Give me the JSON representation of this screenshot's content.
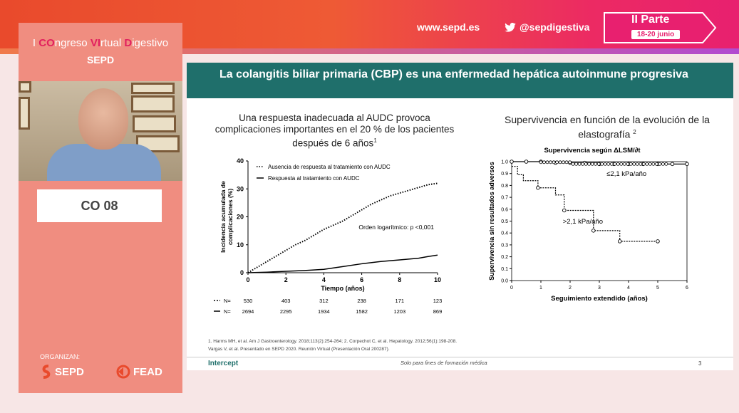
{
  "header": {
    "website": "www.sepd.es",
    "twitter": "@sepdigestiva",
    "parte_title": "II Parte",
    "parte_dates": "18-20 junio"
  },
  "congress": {
    "title_parts": [
      "I ",
      "CO",
      "ngreso ",
      "VI",
      "rtual ",
      "D",
      "igestivo"
    ],
    "org": "SEPD"
  },
  "session_code": "CO 08",
  "organizers": {
    "label": "ORGANIZAN:",
    "logo1": "SEPD",
    "logo2": "FEAD"
  },
  "slide": {
    "title": "La colangitis biliar primaria (CBP) es una enfermedad hepática autoinmune progresiva",
    "left_title": "Una respuesta inadecuada al AUDC provoca complicaciones importantes en el 20 % de los pacientes después de 6 años",
    "left_title_sup": "1",
    "right_title": "Supervivencia en función de la evolución de la elastografía",
    "right_title_sup": "2",
    "references": [
      "1.   Harms MH, et al. Am J Gastroenterology. 2018;113(2):254-264; 2. Corpechot C, et al. Hepatology. 2012;56(1):198-208.",
      "Vargas V, et al. Presentado en SEPD 2020. Reunión Virtual (Presentación Oral 200287)."
    ],
    "brand": "Intercept",
    "disclaimer": "Solo para fines de formación médica",
    "page_number": "3"
  },
  "chart_data": [
    {
      "type": "line",
      "ylabel": "Incidencia acumulada de complicaciones (%)",
      "xlabel": "Tiempo (años)",
      "xlim": [
        0,
        10
      ],
      "ylim": [
        0,
        40
      ],
      "xticks": [
        "0",
        "2",
        "4",
        "6",
        "8",
        "10"
      ],
      "yticks": [
        "0",
        "10",
        "20",
        "30",
        "40"
      ],
      "legend": [
        "Ausencia de respuesta al tratamiento con AUDC",
        "Respuesta al tratamiento con AUDC"
      ],
      "annotation": "Orden logarítmico: p <0,001",
      "series": [
        {
          "name": "Ausencia de respuesta al tratamiento con AUDC",
          "style": "dotted",
          "x": [
            0,
            0.5,
            1,
            1.5,
            2,
            2.5,
            3,
            3.5,
            4,
            4.5,
            5,
            5.5,
            6,
            6.5,
            7,
            7.5,
            8,
            8.5,
            9,
            9.5,
            10
          ],
          "y": [
            0,
            2,
            4,
            6,
            8,
            10,
            11.5,
            13.5,
            15.5,
            17,
            18.5,
            20.5,
            22.5,
            24.5,
            26,
            27.5,
            28.5,
            29.5,
            30.5,
            31.5,
            32
          ]
        },
        {
          "name": "Respuesta al tratamiento con AUDC",
          "style": "solid",
          "x": [
            0,
            1,
            2,
            3,
            4,
            5,
            6,
            7,
            8,
            9,
            9.5,
            10
          ],
          "y": [
            0,
            0.2,
            0.5,
            0.8,
            1.2,
            2.2,
            3.2,
            4,
            4.6,
            5.2,
            5.8,
            6.3
          ]
        }
      ],
      "risk_table": {
        "label": "N=",
        "rows": [
          {
            "style": "dotted",
            "values": [
              "530",
              "403",
              "312",
              "238",
              "171",
              "123"
            ]
          },
          {
            "style": "solid",
            "values": [
              "2694",
              "2295",
              "1934",
              "1582",
              "1203",
              "869"
            ]
          }
        ]
      }
    },
    {
      "type": "line",
      "title": "Supervivencia según ΔLSM/∂t",
      "ylabel": "Supervivencia sin resultados adversos",
      "xlabel": "Seguimiento extendido (años)",
      "xlim": [
        0,
        6
      ],
      "ylim": [
        0,
        1
      ],
      "xticks": [
        "0",
        "1",
        "2",
        "3",
        "4",
        "5",
        "6"
      ],
      "yticks": [
        "0.0",
        "0.1",
        "0.2",
        "0.3",
        "0.4",
        "0.5",
        "0.6",
        "0.7",
        "0.8",
        "0.9",
        "1.0"
      ],
      "series": [
        {
          "name": "≤2,1 kPa/año",
          "style": "solid",
          "x": [
            0,
            0.5,
            1,
            1.5,
            2,
            2.5,
            3,
            3.5,
            4,
            4.5,
            5,
            5.5,
            6
          ],
          "y": [
            1,
            1,
            1,
            0.99,
            0.99,
            0.99,
            0.98,
            0.98,
            0.98,
            0.98,
            0.98,
            0.98,
            0.98
          ]
        },
        {
          "name": ">2,1 kPa/año",
          "style": "dashed",
          "x": [
            0,
            0.2,
            0.4,
            0.9,
            1.5,
            1.8,
            2.6,
            2.8,
            3.6,
            3.7,
            4.2,
            5
          ],
          "y": [
            0.96,
            0.89,
            0.84,
            0.78,
            0.72,
            0.59,
            0.59,
            0.42,
            0.42,
            0.33,
            0.33,
            0.33
          ]
        }
      ]
    }
  ]
}
